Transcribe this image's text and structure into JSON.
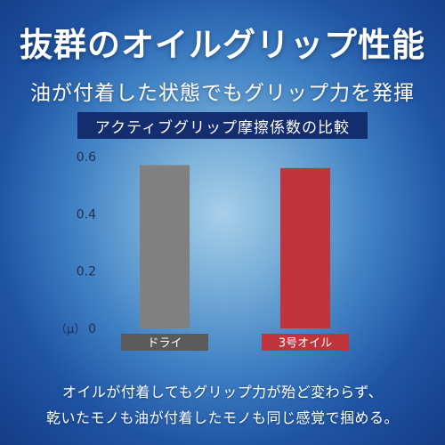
{
  "header": {
    "title": "抜群のオイルグリップ性能",
    "subtitle": "油が付着した状態でもグリップ力を発揮"
  },
  "chart_data": {
    "type": "bar",
    "title": "アクティブグリップ摩擦係数の比較",
    "ylabel": "（μ）",
    "ylim": [
      0,
      0.6
    ],
    "yticks": [
      0,
      0.2,
      0.4,
      0.6
    ],
    "ytick_labels": [
      "0",
      "0.2",
      "0.4",
      "0.6"
    ],
    "grid": false,
    "categories": [
      "ドライ",
      "3号オイル"
    ],
    "values": [
      0.57,
      0.56
    ],
    "colors": [
      "#808080",
      "#c0343b"
    ]
  },
  "footer": {
    "line1": "オイルが付着してもグリップ力が殆ど変わらず、",
    "line2": "乾いたモノも油が付着したモノも同じ感覚で掴める。"
  }
}
